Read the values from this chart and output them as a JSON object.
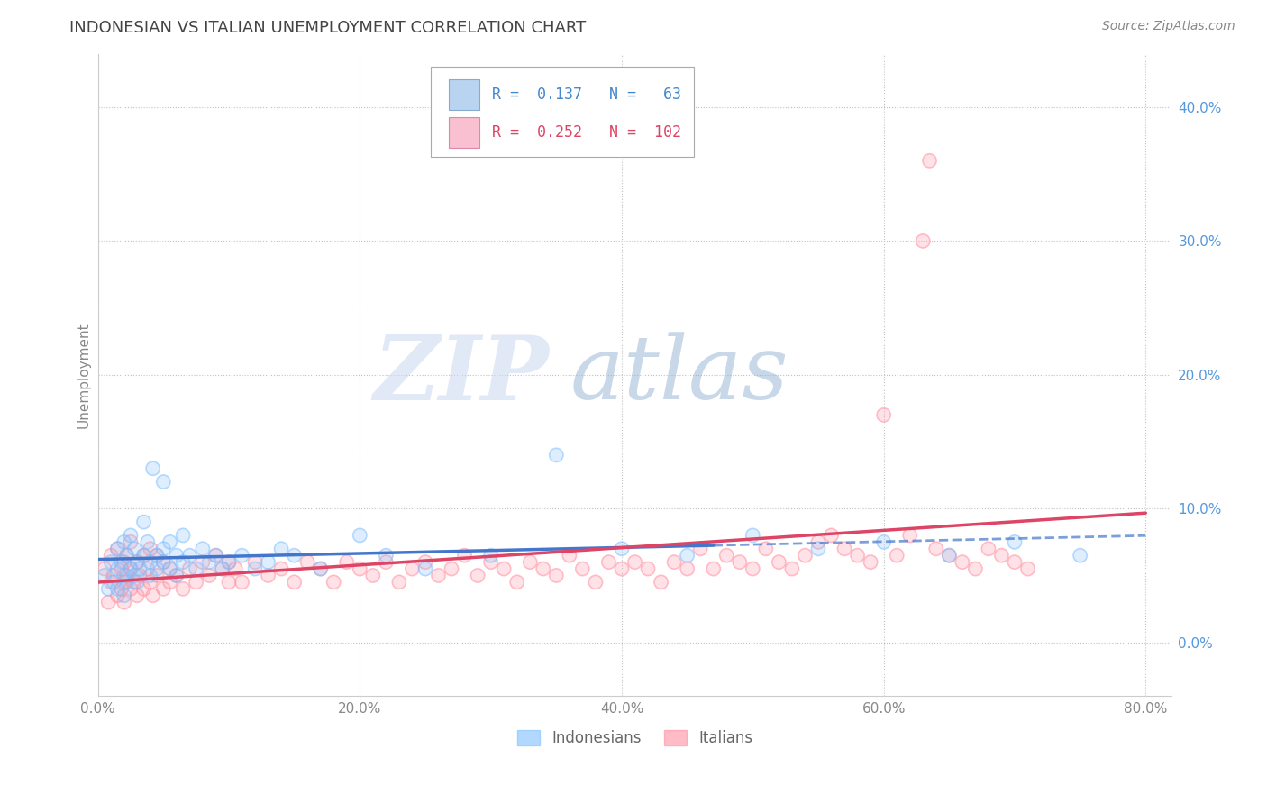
{
  "title": "INDONESIAN VS ITALIAN UNEMPLOYMENT CORRELATION CHART",
  "source": "Source: ZipAtlas.com",
  "ylabel": "Unemployment",
  "xlim": [
    0.0,
    0.82
  ],
  "ylim": [
    -0.04,
    0.44
  ],
  "yticks": [
    0.0,
    0.1,
    0.2,
    0.3,
    0.4
  ],
  "ytick_labels": [
    "0.0%",
    "10.0%",
    "20.0%",
    "30.0%",
    "40.0%"
  ],
  "xticks": [
    0.0,
    0.2,
    0.4,
    0.6,
    0.8
  ],
  "xtick_labels": [
    "0.0%",
    "20.0%",
    "40.0%",
    "60.0%",
    "80.0%"
  ],
  "indonesian_color": "#7fbfff",
  "italian_color": "#ff8fa0",
  "indonesian_trend_color": "#4477cc",
  "italian_trend_color": "#dd4466",
  "watermark_zip": "ZIP",
  "watermark_atlas": "atlas",
  "background_color": "#ffffff",
  "grid_color": "#cccccc",
  "indonesian_scatter": [
    [
      0.005,
      0.05
    ],
    [
      0.008,
      0.04
    ],
    [
      0.01,
      0.06
    ],
    [
      0.012,
      0.045
    ],
    [
      0.015,
      0.07
    ],
    [
      0.015,
      0.055
    ],
    [
      0.015,
      0.04
    ],
    [
      0.018,
      0.06
    ],
    [
      0.02,
      0.05
    ],
    [
      0.02,
      0.075
    ],
    [
      0.02,
      0.035
    ],
    [
      0.022,
      0.065
    ],
    [
      0.022,
      0.045
    ],
    [
      0.025,
      0.08
    ],
    [
      0.025,
      0.055
    ],
    [
      0.028,
      0.07
    ],
    [
      0.028,
      0.05
    ],
    [
      0.03,
      0.06
    ],
    [
      0.03,
      0.045
    ],
    [
      0.032,
      0.055
    ],
    [
      0.035,
      0.09
    ],
    [
      0.035,
      0.065
    ],
    [
      0.038,
      0.075
    ],
    [
      0.04,
      0.06
    ],
    [
      0.04,
      0.05
    ],
    [
      0.042,
      0.13
    ],
    [
      0.045,
      0.065
    ],
    [
      0.045,
      0.055
    ],
    [
      0.05,
      0.12
    ],
    [
      0.05,
      0.07
    ],
    [
      0.05,
      0.06
    ],
    [
      0.055,
      0.075
    ],
    [
      0.055,
      0.055
    ],
    [
      0.06,
      0.065
    ],
    [
      0.06,
      0.05
    ],
    [
      0.065,
      0.08
    ],
    [
      0.065,
      0.06
    ],
    [
      0.07,
      0.065
    ],
    [
      0.075,
      0.055
    ],
    [
      0.08,
      0.07
    ],
    [
      0.085,
      0.06
    ],
    [
      0.09,
      0.065
    ],
    [
      0.095,
      0.055
    ],
    [
      0.1,
      0.06
    ],
    [
      0.11,
      0.065
    ],
    [
      0.12,
      0.055
    ],
    [
      0.13,
      0.06
    ],
    [
      0.14,
      0.07
    ],
    [
      0.15,
      0.065
    ],
    [
      0.17,
      0.055
    ],
    [
      0.2,
      0.08
    ],
    [
      0.22,
      0.065
    ],
    [
      0.25,
      0.055
    ],
    [
      0.3,
      0.065
    ],
    [
      0.35,
      0.14
    ],
    [
      0.4,
      0.07
    ],
    [
      0.45,
      0.065
    ],
    [
      0.5,
      0.08
    ],
    [
      0.55,
      0.07
    ],
    [
      0.6,
      0.075
    ],
    [
      0.65,
      0.065
    ],
    [
      0.7,
      0.075
    ],
    [
      0.75,
      0.065
    ]
  ],
  "italian_scatter": [
    [
      0.005,
      0.055
    ],
    [
      0.008,
      0.03
    ],
    [
      0.01,
      0.045
    ],
    [
      0.01,
      0.065
    ],
    [
      0.012,
      0.05
    ],
    [
      0.015,
      0.035
    ],
    [
      0.015,
      0.07
    ],
    [
      0.018,
      0.055
    ],
    [
      0.018,
      0.04
    ],
    [
      0.02,
      0.06
    ],
    [
      0.02,
      0.045
    ],
    [
      0.02,
      0.03
    ],
    [
      0.022,
      0.05
    ],
    [
      0.022,
      0.065
    ],
    [
      0.025,
      0.04
    ],
    [
      0.025,
      0.055
    ],
    [
      0.025,
      0.075
    ],
    [
      0.028,
      0.045
    ],
    [
      0.03,
      0.06
    ],
    [
      0.03,
      0.035
    ],
    [
      0.032,
      0.05
    ],
    [
      0.035,
      0.065
    ],
    [
      0.035,
      0.04
    ],
    [
      0.038,
      0.055
    ],
    [
      0.04,
      0.045
    ],
    [
      0.04,
      0.07
    ],
    [
      0.042,
      0.035
    ],
    [
      0.045,
      0.05
    ],
    [
      0.045,
      0.065
    ],
    [
      0.05,
      0.04
    ],
    [
      0.05,
      0.06
    ],
    [
      0.055,
      0.045
    ],
    [
      0.055,
      0.055
    ],
    [
      0.06,
      0.05
    ],
    [
      0.065,
      0.04
    ],
    [
      0.07,
      0.055
    ],
    [
      0.075,
      0.045
    ],
    [
      0.08,
      0.06
    ],
    [
      0.085,
      0.05
    ],
    [
      0.09,
      0.065
    ],
    [
      0.095,
      0.055
    ],
    [
      0.1,
      0.045
    ],
    [
      0.1,
      0.06
    ],
    [
      0.105,
      0.055
    ],
    [
      0.11,
      0.045
    ],
    [
      0.12,
      0.06
    ],
    [
      0.13,
      0.05
    ],
    [
      0.14,
      0.055
    ],
    [
      0.15,
      0.045
    ],
    [
      0.16,
      0.06
    ],
    [
      0.17,
      0.055
    ],
    [
      0.18,
      0.045
    ],
    [
      0.19,
      0.06
    ],
    [
      0.2,
      0.055
    ],
    [
      0.21,
      0.05
    ],
    [
      0.22,
      0.06
    ],
    [
      0.23,
      0.045
    ],
    [
      0.24,
      0.055
    ],
    [
      0.25,
      0.06
    ],
    [
      0.26,
      0.05
    ],
    [
      0.27,
      0.055
    ],
    [
      0.28,
      0.065
    ],
    [
      0.29,
      0.05
    ],
    [
      0.3,
      0.06
    ],
    [
      0.31,
      0.055
    ],
    [
      0.32,
      0.045
    ],
    [
      0.33,
      0.06
    ],
    [
      0.34,
      0.055
    ],
    [
      0.35,
      0.05
    ],
    [
      0.36,
      0.065
    ],
    [
      0.37,
      0.055
    ],
    [
      0.38,
      0.045
    ],
    [
      0.39,
      0.06
    ],
    [
      0.4,
      0.055
    ],
    [
      0.41,
      0.06
    ],
    [
      0.42,
      0.055
    ],
    [
      0.43,
      0.045
    ],
    [
      0.44,
      0.06
    ],
    [
      0.45,
      0.055
    ],
    [
      0.46,
      0.07
    ],
    [
      0.47,
      0.055
    ],
    [
      0.48,
      0.065
    ],
    [
      0.49,
      0.06
    ],
    [
      0.5,
      0.055
    ],
    [
      0.51,
      0.07
    ],
    [
      0.52,
      0.06
    ],
    [
      0.53,
      0.055
    ],
    [
      0.54,
      0.065
    ],
    [
      0.55,
      0.075
    ],
    [
      0.56,
      0.08
    ],
    [
      0.57,
      0.07
    ],
    [
      0.58,
      0.065
    ],
    [
      0.59,
      0.06
    ],
    [
      0.6,
      0.17
    ],
    [
      0.61,
      0.065
    ],
    [
      0.62,
      0.08
    ],
    [
      0.63,
      0.3
    ],
    [
      0.635,
      0.36
    ],
    [
      0.64,
      0.07
    ],
    [
      0.65,
      0.065
    ],
    [
      0.66,
      0.06
    ],
    [
      0.67,
      0.055
    ],
    [
      0.68,
      0.07
    ],
    [
      0.69,
      0.065
    ],
    [
      0.7,
      0.06
    ],
    [
      0.71,
      0.055
    ]
  ]
}
